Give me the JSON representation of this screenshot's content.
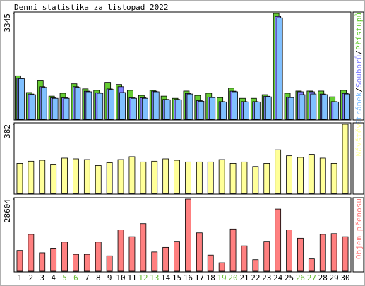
{
  "chart_data": [
    {
      "type": "bar",
      "title": "Denní statistika za listopad 2022",
      "legend_separator": "/",
      "ylim": [
        0,
        3345
      ],
      "yticks": [
        3345
      ],
      "series": [
        {
          "name": "Přístupů",
          "color": "#66cc33",
          "values": [
            1375,
            847,
            1237,
            733,
            825,
            1122,
            962,
            916,
            1168,
            1100,
            916,
            756,
            916,
            733,
            664,
            893,
            756,
            825,
            687,
            985,
            664,
            664,
            779,
            3345,
            825,
            893,
            893,
            893,
            710,
            916
          ]
        },
        {
          "name": "Souborů",
          "color": "#8080ff",
          "values": [
            1300,
            800,
            1030,
            680,
            680,
            1030,
            890,
            840,
            960,
            1030,
            680,
            680,
            890,
            630,
            630,
            820,
            590,
            700,
            560,
            890,
            560,
            560,
            730,
            3250,
            700,
            870,
            870,
            800,
            560,
            820
          ]
        },
        {
          "name": "Stránek",
          "color": "#80c0ff",
          "values": [
            1282,
            779,
            1008,
            664,
            664,
            1008,
            870,
            824,
            939,
            847,
            664,
            664,
            870,
            618,
            618,
            801,
            572,
            687,
            550,
            870,
            550,
            550,
            710,
            3206,
            687,
            779,
            801,
            779,
            550,
            801
          ]
        }
      ]
    },
    {
      "type": "bar",
      "ylim": [
        0,
        382
      ],
      "yticks": [
        382
      ],
      "series": [
        {
          "name": "Návštěv",
          "color": "#ffff99",
          "values": [
            166,
            178,
            183,
            162,
            195,
            191,
            187,
            154,
            170,
            187,
            203,
            174,
            178,
            191,
            183,
            174,
            174,
            174,
            187,
            166,
            174,
            149,
            166,
            241,
            208,
            199,
            216,
            195,
            166,
            382
          ]
        }
      ]
    },
    {
      "type": "bar",
      "ylim": [
        0,
        28604
      ],
      "yticks": [
        28604
      ],
      "categories": [
        "1",
        "2",
        "3",
        "4",
        "5",
        "6",
        "7",
        "8",
        "9",
        "10",
        "11",
        "12",
        "13",
        "14",
        "15",
        "16",
        "17",
        "18",
        "19",
        "20",
        "21",
        "22",
        "23",
        "24",
        "25",
        "26",
        "27",
        "28",
        "29",
        "30"
      ],
      "weekend": [
        false,
        false,
        false,
        false,
        true,
        true,
        false,
        false,
        false,
        false,
        false,
        true,
        true,
        false,
        false,
        false,
        false,
        false,
        true,
        true,
        false,
        false,
        false,
        false,
        false,
        true,
        true,
        false,
        false,
        false
      ],
      "label_color": "#000000",
      "weekend_color": "#66bb33",
      "series": [
        {
          "name": "Objem přenosu",
          "color": "#ff8080",
          "values": [
            8216,
            14606,
            7303,
            9129,
            11563,
            6695,
            6695,
            11563,
            6086,
            16432,
            13694,
            18867,
            7608,
            9433,
            11868,
            28604,
            15215,
            6390,
            3347,
            16737,
            10042,
            4565,
            11868,
            24648,
            16432,
            13085,
            4869,
            14606,
            14911,
            13694
          ]
        }
      ]
    }
  ]
}
